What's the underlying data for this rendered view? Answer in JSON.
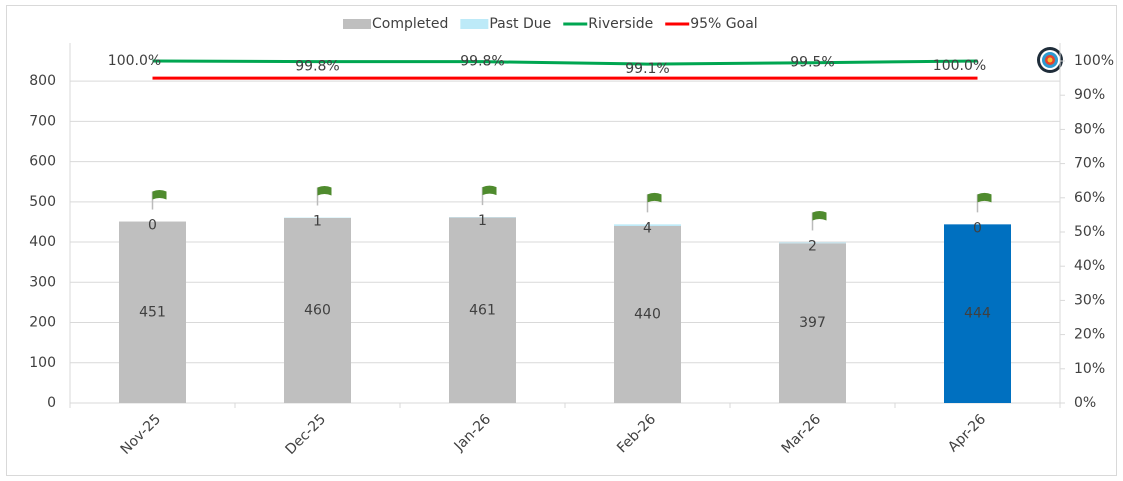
{
  "chart_data": {
    "type": "bar",
    "categories": [
      "Nov-25",
      "Dec-25",
      "Jan-26",
      "Feb-26",
      "Mar-26",
      "Apr-26"
    ],
    "series": [
      {
        "name": "Completed",
        "color": "#bfbfbf",
        "colors": [
          "#bfbfbf",
          "#bfbfbf",
          "#bfbfbf",
          "#bfbfbf",
          "#bfbfbf",
          "#0070c0"
        ],
        "values": [
          451,
          460,
          461,
          440,
          397,
          444
        ]
      },
      {
        "name": "Past Due",
        "color": "#bdeaf8",
        "values": [
          0,
          1,
          1,
          4,
          2,
          0
        ]
      },
      {
        "name": "Riverside",
        "color": "#00a651",
        "axis": "y2",
        "values": [
          100.0,
          99.8,
          99.8,
          99.1,
          99.5,
          100.0
        ],
        "value_labels": [
          "100.0%",
          "99.8%",
          "99.8%",
          "99.1%",
          "99.5%",
          "100.0%"
        ]
      },
      {
        "name": "95% Goal",
        "color": "#ff0000",
        "axis": "y2",
        "values": [
          95,
          95,
          95,
          95,
          95,
          95
        ]
      }
    ],
    "ylim": [
      0,
      850
    ],
    "yticks": [
      0,
      100,
      200,
      300,
      400,
      500,
      600,
      700,
      800
    ],
    "y2lim": [
      0,
      100
    ],
    "y2ticks": [
      {
        "value": 0,
        "label": "0%"
      },
      {
        "value": 10,
        "label": "10%"
      },
      {
        "value": 20,
        "label": "20%"
      },
      {
        "value": 30,
        "label": "30%"
      },
      {
        "value": 40,
        "label": "40%"
      },
      {
        "value": 50,
        "label": "50%"
      },
      {
        "value": 60,
        "label": "60%"
      },
      {
        "value": 70,
        "label": "70%"
      },
      {
        "value": 80,
        "label": "80%"
      },
      {
        "value": 90,
        "label": "90%"
      },
      {
        "value": 100,
        "label": "100%"
      }
    ],
    "grid": true,
    "legend": "top"
  }
}
